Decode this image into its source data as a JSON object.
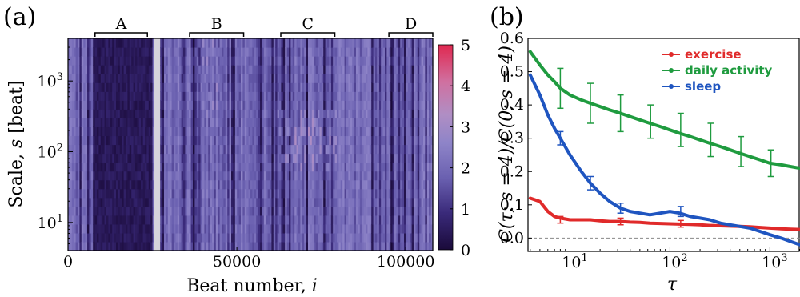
{
  "chart_data": [
    {
      "type": "heatmap",
      "panel_label": "(a)",
      "xlabel": "Beat number, ",
      "xlabel_var": "i",
      "ylabel": "Scale, ",
      "ylabel_var": "s",
      "ylabel_unit": " [beat]",
      "xlim": [
        0,
        108000
      ],
      "x_ticks": [
        0,
        50000,
        100000
      ],
      "x_tick_labels": [
        "0",
        "50000",
        "100000"
      ],
      "y_scale": "log",
      "ylim": [
        4,
        4000
      ],
      "y_ticks": [
        {
          "value": 10,
          "base": "10",
          "exp": "1"
        },
        {
          "value": 100,
          "base": "10",
          "exp": "2"
        },
        {
          "value": 1000,
          "base": "10",
          "exp": "3"
        }
      ],
      "colorbar": {
        "min": 0,
        "max": 5,
        "ticks": [
          0,
          1,
          2,
          3,
          4,
          5
        ],
        "tick_labels": [
          "0",
          "1",
          "2",
          "3",
          "4",
          "5"
        ],
        "colors": [
          "#1a0a3a",
          "#3a2a7a",
          "#6a60b0",
          "#8e84c8",
          "#b08ec4",
          "#d070a0",
          "#e02850"
        ]
      },
      "segments": [
        {
          "label": "A",
          "x_start": 8000,
          "x_end": 23500
        },
        {
          "label": "B",
          "x_start": 36000,
          "x_end": 52000
        },
        {
          "label": "C",
          "x_start": 63000,
          "x_end": 79000
        },
        {
          "label": "D",
          "x_start": 95000,
          "x_end": 110000
        }
      ],
      "gap": {
        "x_start": 25800,
        "x_end": 27000
      }
    },
    {
      "type": "line",
      "panel_label": "(b)",
      "xlabel": "τ",
      "ylabel": "C(τ; s = 4)/C(0; s = 4)",
      "x_scale": "log",
      "xlim": [
        3.8,
        2000
      ],
      "ylim": [
        -0.04,
        0.6
      ],
      "x_ticks": [
        {
          "value": 10,
          "base": "10",
          "exp": "1"
        },
        {
          "value": 100,
          "base": "10",
          "exp": "2"
        },
        {
          "value": 1000,
          "base": "10",
          "exp": "3"
        }
      ],
      "y_ticks": [
        0.0,
        0.1,
        0.2,
        0.3,
        0.4,
        0.5,
        0.6
      ],
      "y_tick_labels": [
        "0.0",
        "0.1",
        "0.2",
        "0.3",
        "0.4",
        "0.5",
        "0.6"
      ],
      "zero_line": true,
      "legend_position": "top-right",
      "series": [
        {
          "name": "exercise",
          "color": "#e02a2a",
          "x": [
            4,
            5,
            6,
            7,
            8,
            10,
            13,
            16,
            20,
            25,
            32,
            40,
            50,
            63,
            80,
            100,
            125,
            160,
            200,
            250,
            320,
            400,
            500,
            630,
            800,
            1000,
            1300,
            1600,
            2000
          ],
          "y": [
            0.12,
            0.11,
            0.08,
            0.065,
            0.06,
            0.055,
            0.055,
            0.055,
            0.052,
            0.05,
            0.05,
            0.048,
            0.047,
            0.045,
            0.044,
            0.043,
            0.042,
            0.041,
            0.04,
            0.038,
            0.037,
            0.036,
            0.035,
            0.034,
            0.032,
            0.03,
            0.028,
            0.027,
            0.026
          ],
          "error_x": [
            8,
            32,
            128
          ],
          "error_y": [
            0.055,
            0.05,
            0.043
          ],
          "error_size": [
            0.01,
            0.01,
            0.01
          ]
        },
        {
          "name": "daily activity",
          "color": "#1f9b3f",
          "x": [
            4,
            5,
            6,
            7,
            8,
            10,
            13,
            16,
            20,
            25,
            32,
            40,
            50,
            63,
            80,
            100,
            125,
            160,
            200,
            250,
            320,
            400,
            500,
            630,
            800,
            1000,
            1300,
            1600,
            2000
          ],
          "y": [
            0.56,
            0.52,
            0.49,
            0.47,
            0.45,
            0.43,
            0.415,
            0.405,
            0.395,
            0.385,
            0.375,
            0.365,
            0.355,
            0.345,
            0.335,
            0.325,
            0.315,
            0.305,
            0.295,
            0.285,
            0.275,
            0.265,
            0.255,
            0.245,
            0.235,
            0.225,
            0.22,
            0.215,
            0.21
          ],
          "error_x": [
            8,
            16,
            32,
            64,
            128,
            256,
            512,
            1024
          ],
          "error_y": [
            0.45,
            0.405,
            0.375,
            0.35,
            0.325,
            0.295,
            0.26,
            0.225
          ],
          "error_size": [
            0.06,
            0.06,
            0.055,
            0.05,
            0.05,
            0.05,
            0.045,
            0.04
          ]
        },
        {
          "name": "sleep",
          "color": "#1f55c0",
          "x": [
            4,
            5,
            6,
            7,
            8,
            10,
            13,
            16,
            20,
            25,
            32,
            40,
            50,
            63,
            80,
            100,
            125,
            160,
            200,
            250,
            320,
            400,
            500,
            630,
            800,
            1000,
            1300,
            1600,
            2000
          ],
          "y": [
            0.49,
            0.43,
            0.37,
            0.33,
            0.3,
            0.25,
            0.2,
            0.165,
            0.135,
            0.11,
            0.09,
            0.08,
            0.075,
            0.07,
            0.075,
            0.08,
            0.075,
            0.065,
            0.06,
            0.055,
            0.045,
            0.04,
            0.035,
            0.03,
            0.02,
            0.01,
            0.0,
            -0.01,
            -0.02
          ],
          "error_x": [
            8,
            16,
            32,
            128
          ],
          "error_y": [
            0.3,
            0.165,
            0.09,
            0.08
          ],
          "error_size": [
            0.02,
            0.02,
            0.015,
            0.015
          ]
        }
      ]
    }
  ]
}
